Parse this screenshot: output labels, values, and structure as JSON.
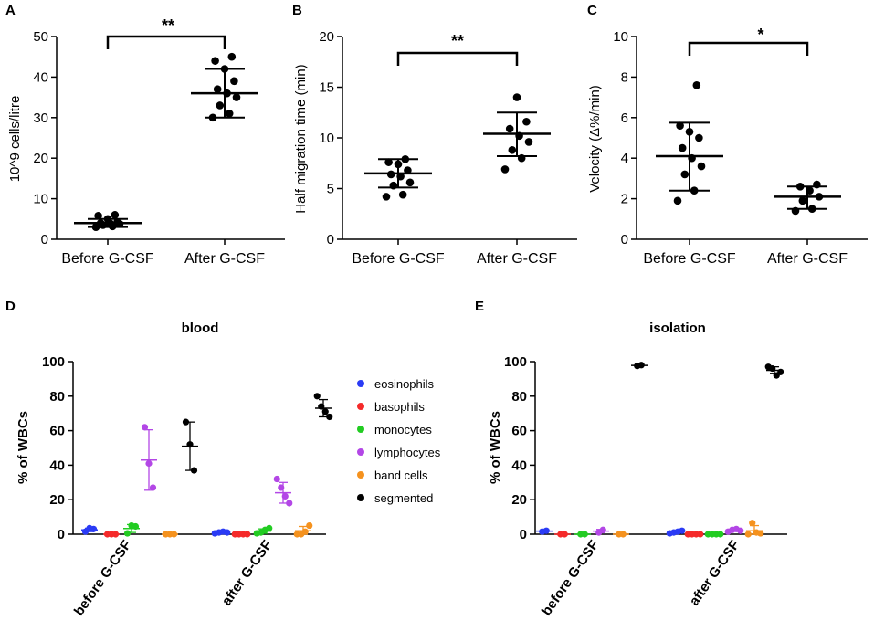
{
  "figure": {
    "panel_labels": [
      "A",
      "B",
      "C",
      "D",
      "E"
    ]
  },
  "chart_data": [
    {
      "panel": "A",
      "type": "scatter",
      "title": "",
      "xlabel": "",
      "ylabel": "10^9 cells/litre",
      "ylim": [
        0,
        50
      ],
      "yticks": [
        0,
        10,
        20,
        30,
        40,
        50
      ],
      "categories": [
        "Before G-CSF",
        "After G-CSF"
      ],
      "series": [
        {
          "name": "Before G-CSF",
          "values": [
            3.0,
            3.2,
            3.5,
            3.8,
            3.9,
            4.0,
            4.2,
            5.0,
            5.8,
            6.0
          ],
          "mean": 4.0,
          "sd_low": 3.0,
          "sd_high": 5.0
        },
        {
          "name": "After G-CSF",
          "values": [
            30.0,
            31.0,
            33.0,
            35.0,
            36.0,
            37.0,
            39.0,
            42.0,
            44.0,
            45.0
          ],
          "mean": 36.0,
          "sd_low": 30.0,
          "sd_high": 42.0
        }
      ],
      "significance": "**"
    },
    {
      "panel": "B",
      "type": "scatter",
      "title": "",
      "xlabel": "",
      "ylabel": "Half migration time (min)",
      "ylim": [
        0,
        20
      ],
      "yticks": [
        0,
        5,
        10,
        15,
        20
      ],
      "categories": [
        "Before G-CSF",
        "After G-CSF"
      ],
      "series": [
        {
          "name": "Before G-CSF",
          "values": [
            4.2,
            4.4,
            5.3,
            5.6,
            6.2,
            6.4,
            6.8,
            7.4,
            7.6,
            7.9
          ],
          "mean": 6.5,
          "sd_low": 5.1,
          "sd_high": 7.9
        },
        {
          "name": "After G-CSF",
          "values": [
            6.9,
            8.0,
            8.8,
            9.6,
            10.2,
            10.9,
            11.6,
            14.0
          ],
          "mean": 10.4,
          "sd_low": 8.2,
          "sd_high": 12.5
        }
      ],
      "significance": "**"
    },
    {
      "panel": "C",
      "type": "scatter",
      "title": "",
      "xlabel": "",
      "ylabel": "Velocity (Δ%/min)",
      "ylim": [
        0,
        10
      ],
      "yticks": [
        0,
        2,
        4,
        6,
        8,
        10
      ],
      "categories": [
        "Before G-CSF",
        "After G-CSF"
      ],
      "series": [
        {
          "name": "Before G-CSF",
          "values": [
            1.9,
            2.4,
            3.2,
            3.6,
            4.0,
            4.5,
            5.0,
            5.3,
            5.6,
            7.6
          ],
          "mean": 4.1,
          "sd_low": 2.4,
          "sd_high": 5.75
        },
        {
          "name": "After G-CSF",
          "values": [
            1.4,
            1.5,
            1.9,
            2.1,
            2.4,
            2.6,
            2.7
          ],
          "mean": 2.1,
          "sd_low": 1.5,
          "sd_high": 2.6
        }
      ],
      "significance": "*"
    },
    {
      "panel": "D",
      "type": "scatter",
      "title": "blood",
      "xlabel": "",
      "ylabel": "% of WBCs",
      "ylim": [
        0,
        100
      ],
      "yticks": [
        0,
        20,
        40,
        60,
        80,
        100
      ],
      "groups": [
        "before G-CSF",
        "after G-CSF"
      ],
      "series": [
        {
          "name": "eosinophils",
          "color": "#2a3bf5",
          "groups": [
            {
              "values": [
                1.5,
                3.5,
                3.0
              ],
              "mean": 2.5,
              "sd": 1.0
            },
            {
              "values": [
                0.5,
                1.0,
                1.5,
                1.0
              ],
              "mean": 1.0,
              "sd": 0.4
            }
          ]
        },
        {
          "name": "basophils",
          "color": "#f52a2a",
          "groups": [
            {
              "values": [
                0.0,
                0.0,
                0.0
              ],
              "mean": 0.0,
              "sd": 0.0
            },
            {
              "values": [
                0.0,
                0.0,
                0.0,
                0.0
              ],
              "mean": 0.0,
              "sd": 0.0
            }
          ]
        },
        {
          "name": "monocytes",
          "color": "#22cc22",
          "groups": [
            {
              "values": [
                0.5,
                5.0,
                4.5
              ],
              "mean": 3.3,
              "sd": 2.3
            },
            {
              "values": [
                0.5,
                1.0,
                2.5,
                3.5
              ],
              "mean": 1.8,
              "sd": 1.3
            }
          ]
        },
        {
          "name": "lymphocytes",
          "color": "#b347e6",
          "groups": [
            {
              "values": [
                62.0,
                41.0,
                27.0
              ],
              "mean": 43.0,
              "sd": 17.5
            },
            {
              "values": [
                32.0,
                27.0,
                22.0,
                18.0
              ],
              "mean": 24.0,
              "sd": 6.0
            }
          ]
        },
        {
          "name": "band cells",
          "color": "#f5921e",
          "groups": [
            {
              "values": [
                0.0,
                0.0,
                0.0
              ],
              "mean": 0.0,
              "sd": 0.0
            },
            {
              "values": [
                0.0,
                0.0,
                1.5,
                5.0
              ],
              "mean": 2.0,
              "sd": 2.5
            }
          ]
        },
        {
          "name": "segmented",
          "color": "#000000",
          "groups": [
            {
              "values": [
                65.0,
                52.0,
                37.0
              ],
              "mean": 51.0,
              "sd": 14.0
            },
            {
              "values": [
                80.0,
                74.0,
                71.0,
                68.0
              ],
              "mean": 73.0,
              "sd": 5.0
            }
          ]
        }
      ],
      "legend": [
        "eosinophils",
        "basophils",
        "monocytes",
        "lymphocytes",
        "band cells",
        "segmented"
      ]
    },
    {
      "panel": "E",
      "type": "scatter",
      "title": "isolation",
      "xlabel": "",
      "ylabel": "% of WBCs",
      "ylim": [
        0,
        100
      ],
      "yticks": [
        0,
        20,
        40,
        60,
        80,
        100
      ],
      "groups": [
        "before G-CSF",
        "after G-CSF"
      ],
      "series": [
        {
          "name": "eosinophils",
          "color": "#2a3bf5",
          "groups": [
            {
              "values": [
                1.5,
                2.0
              ],
              "mean": 1.8,
              "sd": 0.3
            },
            {
              "values": [
                0.5,
                1.0,
                1.5,
                2.0
              ],
              "mean": 1.2,
              "sd": 0.6
            }
          ]
        },
        {
          "name": "basophils",
          "color": "#f52a2a",
          "groups": [
            {
              "values": [
                0.0,
                0.0
              ],
              "mean": 0.0,
              "sd": 0.0
            },
            {
              "values": [
                0.0,
                0.0,
                0.0,
                0.0
              ],
              "mean": 0.0,
              "sd": 0.0
            }
          ]
        },
        {
          "name": "monocytes",
          "color": "#22cc22",
          "groups": [
            {
              "values": [
                0.0,
                0.0
              ],
              "mean": 0.0,
              "sd": 0.0
            },
            {
              "values": [
                0.0,
                0.0,
                0.0,
                0.0
              ],
              "mean": 0.0,
              "sd": 0.0
            }
          ]
        },
        {
          "name": "lymphocytes",
          "color": "#b347e6",
          "groups": [
            {
              "values": [
                1.0,
                2.5
              ],
              "mean": 1.8,
              "sd": 1.0
            },
            {
              "values": [
                1.5,
                2.5,
                3.0,
                2.0
              ],
              "mean": 2.2,
              "sd": 0.6
            }
          ]
        },
        {
          "name": "band cells",
          "color": "#f5921e",
          "groups": [
            {
              "values": [
                0.0,
                0.0
              ],
              "mean": 0.0,
              "sd": 0.0
            },
            {
              "values": [
                0.0,
                6.5,
                1.0,
                0.5
              ],
              "mean": 2.0,
              "sd": 3.0
            }
          ]
        },
        {
          "name": "segmented",
          "color": "#000000",
          "groups": [
            {
              "values": [
                97.5,
                98.0
              ],
              "mean": 97.8,
              "sd": 0.3
            },
            {
              "values": [
                97.0,
                96.0,
                92.0,
                94.0
              ],
              "mean": 95.0,
              "sd": 2.0
            }
          ]
        }
      ]
    }
  ]
}
